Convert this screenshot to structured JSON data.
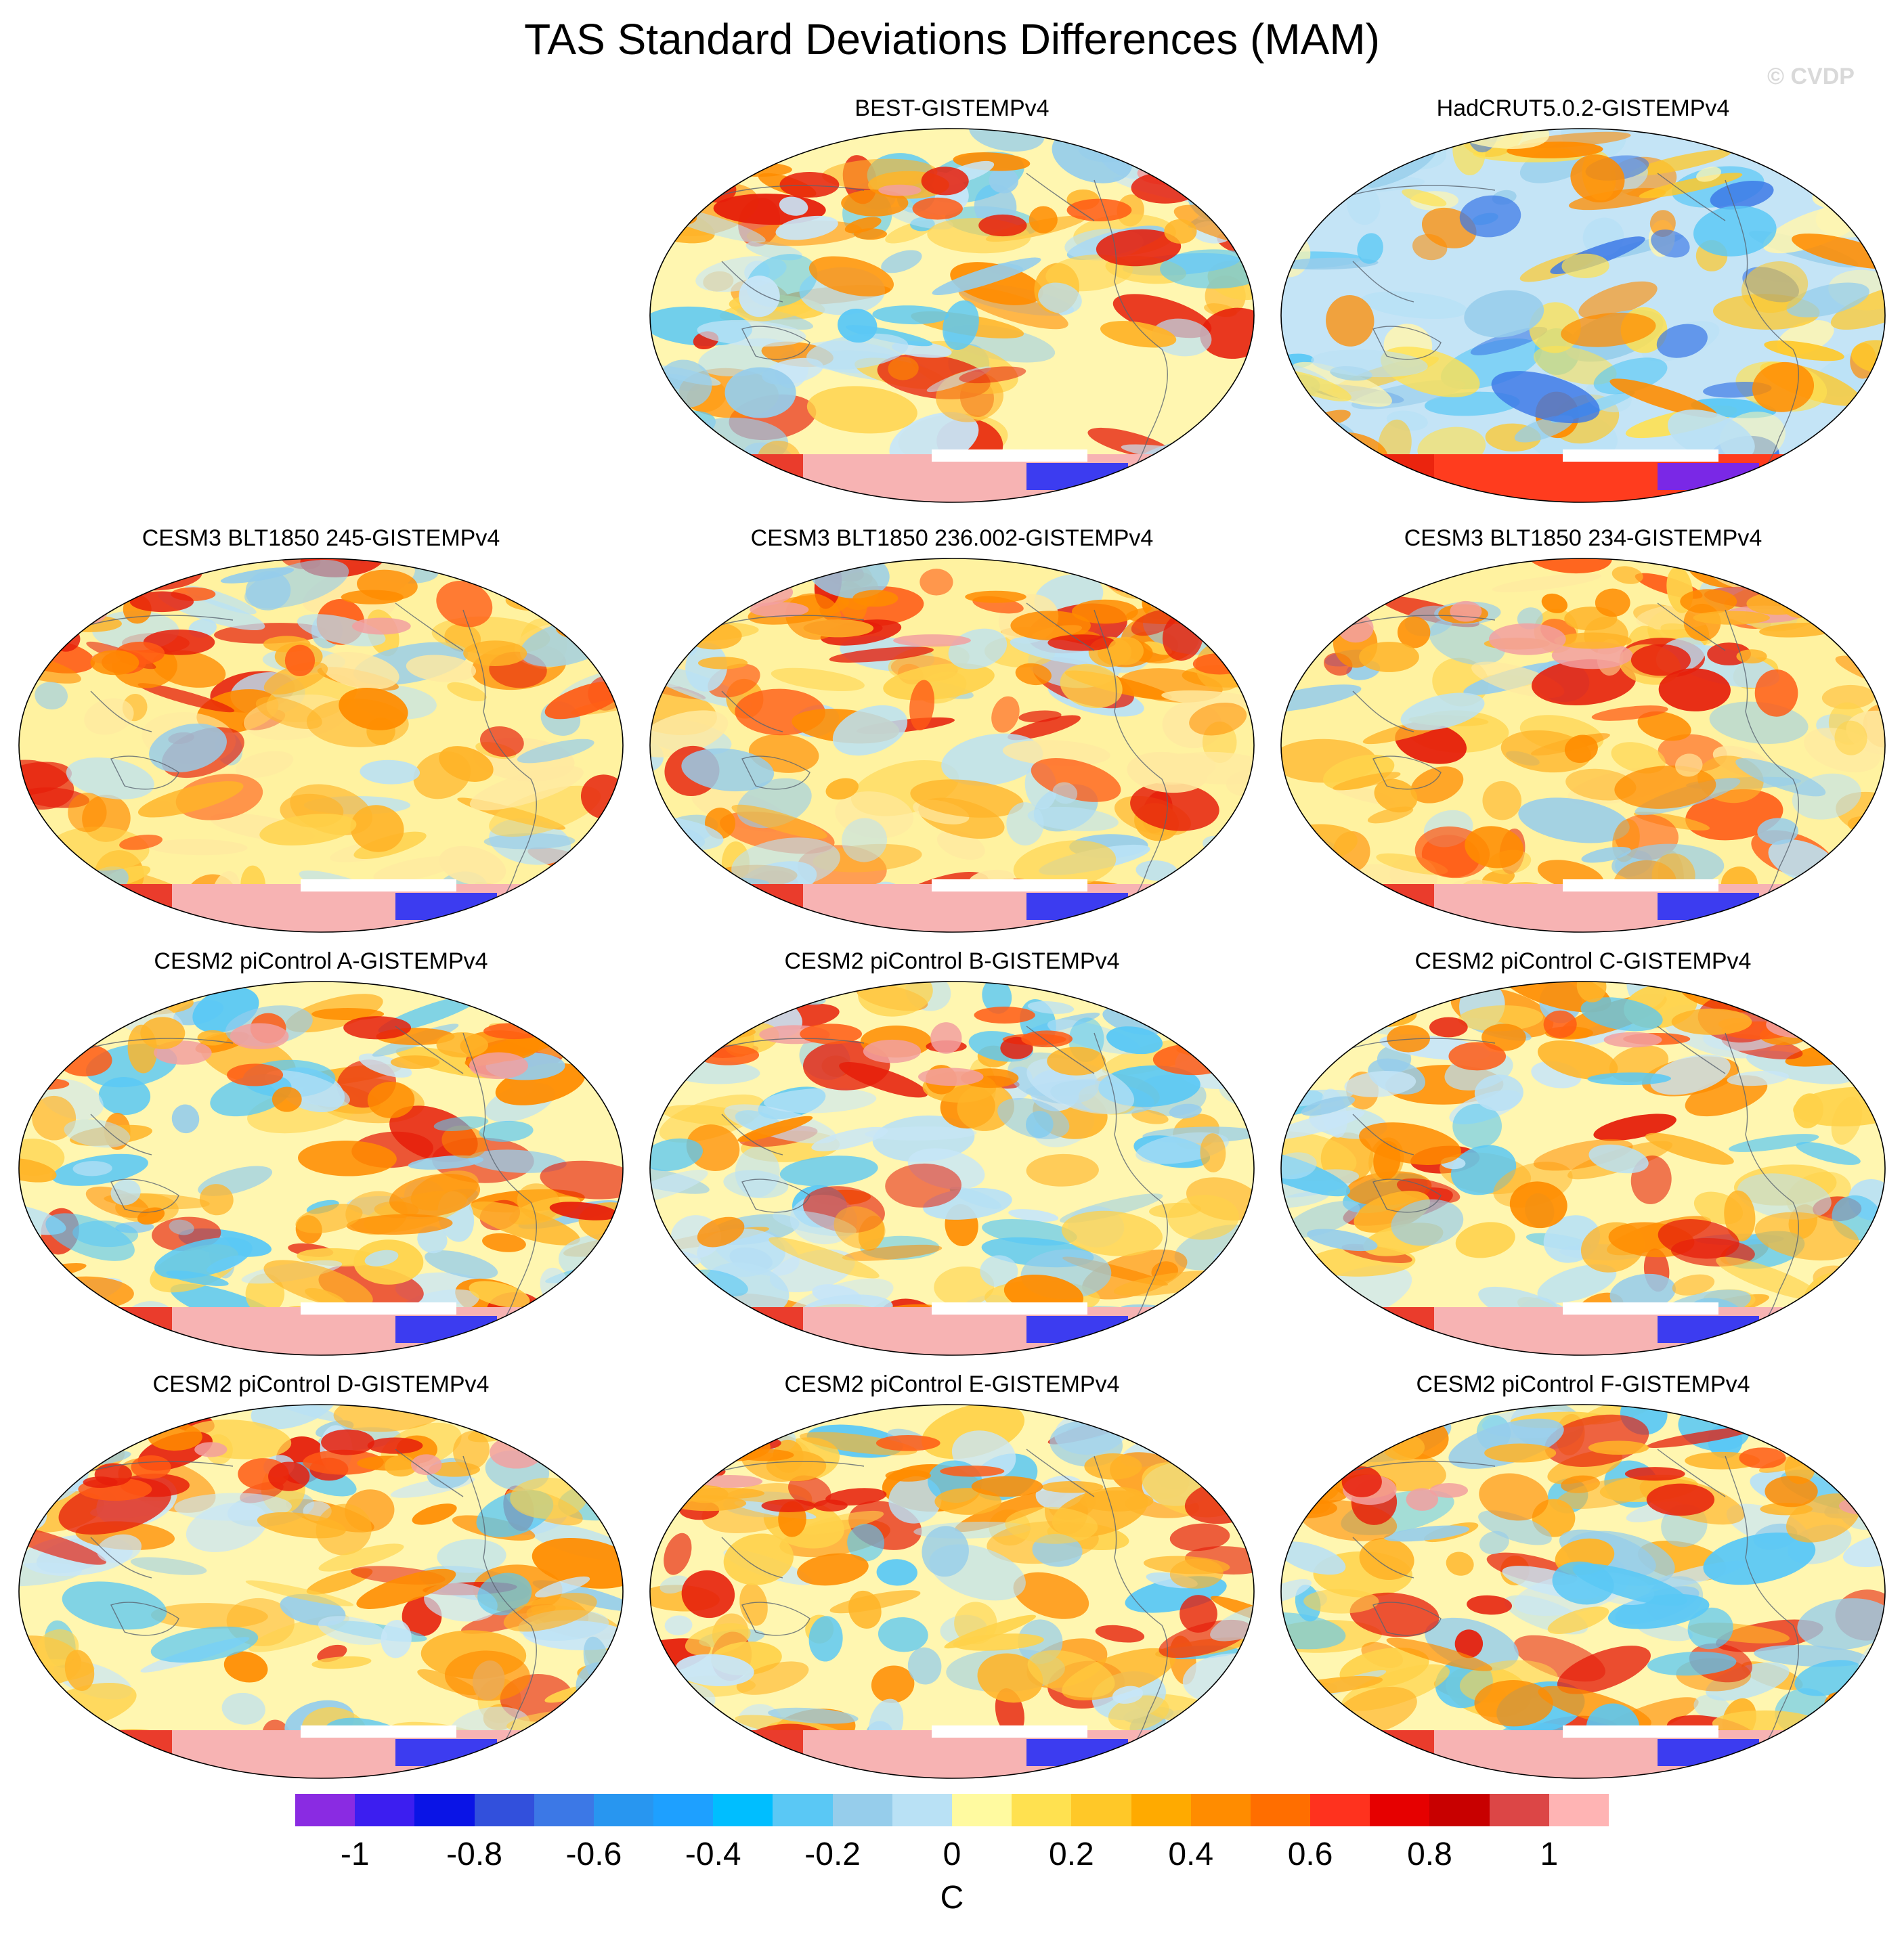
{
  "figure": {
    "title": "TAS Standard Deviations Differences (MAM)",
    "copyright": "© CVDP"
  },
  "panels": [
    {
      "title": "BEST-GISTEMPv4",
      "row": 0,
      "col": 1,
      "fill": "mixed"
    },
    {
      "title": "HadCRUT5.0.2-GISTEMPv4",
      "row": 0,
      "col": 2,
      "fill": "cool"
    },
    {
      "title": "CESM3 BLT1850 245-GISTEMPv4",
      "row": 1,
      "col": 0,
      "fill": "warm"
    },
    {
      "title": "CESM3 BLT1850 236.002-GISTEMPv4",
      "row": 1,
      "col": 1,
      "fill": "warm"
    },
    {
      "title": "CESM3 BLT1850 234-GISTEMPv4",
      "row": 1,
      "col": 2,
      "fill": "warm"
    },
    {
      "title": "CESM2 piControl A-GISTEMPv4",
      "row": 2,
      "col": 0,
      "fill": "mixed"
    },
    {
      "title": "CESM2 piControl B-GISTEMPv4",
      "row": 2,
      "col": 1,
      "fill": "mixed"
    },
    {
      "title": "CESM2 piControl C-GISTEMPv4",
      "row": 2,
      "col": 2,
      "fill": "mixed"
    },
    {
      "title": "CESM2 piControl D-GISTEMPv4",
      "row": 3,
      "col": 0,
      "fill": "mixed"
    },
    {
      "title": "CESM2 piControl E-GISTEMPv4",
      "row": 3,
      "col": 1,
      "fill": "mixed"
    },
    {
      "title": "CESM2 piControl F-GISTEMPv4",
      "row": 3,
      "col": 2,
      "fill": "mixed"
    }
  ],
  "colorbar": {
    "unit": "C",
    "colors": [
      "#8a2be2",
      "#3c1ef0",
      "#0a14e6",
      "#3250dc",
      "#3c78e6",
      "#2896f0",
      "#1ea0ff",
      "#00beff",
      "#5ac8f5",
      "#96cdeb",
      "#b9e1f5",
      "#fffaa0",
      "#ffe150",
      "#ffc828",
      "#ffaa00",
      "#ff8c00",
      "#ff6e00",
      "#ff321e",
      "#e60000",
      "#c80000",
      "#dc4646",
      "#ffb4b4"
    ],
    "tick_values": [
      -1,
      -0.8,
      -0.6,
      -0.4,
      -0.2,
      0,
      0.2,
      0.4,
      0.6,
      0.8,
      1
    ],
    "tick_labels": [
      "-1",
      "-0.8",
      "-0.6",
      "-0.4",
      "-0.2",
      "0",
      "0.2",
      "0.4",
      "0.6",
      "0.8",
      "1"
    ]
  }
}
